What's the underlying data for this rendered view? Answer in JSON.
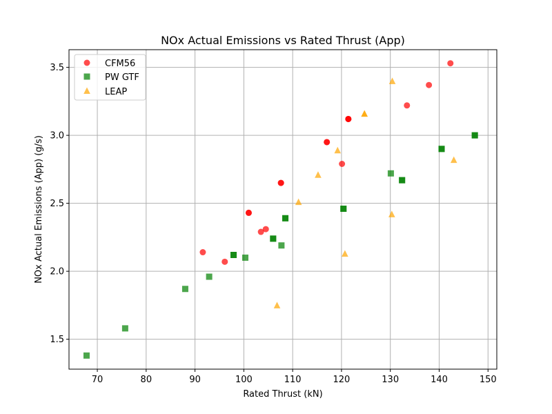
{
  "chart_data": {
    "type": "scatter",
    "title": "NOx Actual Emissions vs Rated Thrust (App)",
    "xlabel": "Rated Thrust (kN)",
    "ylabel": "NOx Actual Emissions (App) (g/s)",
    "xlim": [
      64.2,
      151.8
    ],
    "ylim": [
      1.28,
      3.63
    ],
    "xticks": [
      70,
      80,
      90,
      100,
      110,
      120,
      130,
      140,
      150
    ],
    "yticks": [
      1.5,
      2.0,
      2.5,
      3.0,
      3.5
    ],
    "xtick_labels": [
      "70",
      "80",
      "90",
      "100",
      "110",
      "120",
      "130",
      "140",
      "150"
    ],
    "ytick_labels": [
      "1.5",
      "2.0",
      "2.5",
      "3.0",
      "3.5"
    ],
    "grid": true,
    "legend_position": "upper-left",
    "series": [
      {
        "name": "CFM56",
        "marker": "circle",
        "color": "#ff0000",
        "points": [
          [
            91.6,
            2.14
          ],
          [
            96.1,
            2.07
          ],
          [
            101.0,
            2.43
          ],
          [
            101.0,
            2.43
          ],
          [
            103.5,
            2.29
          ],
          [
            104.5,
            2.31
          ],
          [
            107.6,
            2.65
          ],
          [
            107.6,
            2.65
          ],
          [
            117.0,
            2.95
          ],
          [
            117.0,
            2.95
          ],
          [
            120.1,
            2.79
          ],
          [
            121.4,
            3.12
          ],
          [
            121.4,
            3.12
          ],
          [
            121.4,
            3.12
          ],
          [
            133.4,
            3.22
          ],
          [
            137.9,
            3.37
          ],
          [
            142.3,
            3.53
          ]
        ]
      },
      {
        "name": "PW GTF",
        "marker": "square",
        "color": "#008000",
        "points": [
          [
            67.8,
            1.38
          ],
          [
            75.7,
            1.58
          ],
          [
            88.0,
            1.87
          ],
          [
            92.9,
            1.96
          ],
          [
            97.9,
            2.12
          ],
          [
            97.9,
            2.12
          ],
          [
            100.3,
            2.1
          ],
          [
            106.0,
            2.24
          ],
          [
            106.0,
            2.24
          ],
          [
            107.7,
            2.19
          ],
          [
            108.5,
            2.39
          ],
          [
            108.5,
            2.39
          ],
          [
            120.4,
            2.46
          ],
          [
            120.4,
            2.46
          ],
          [
            130.1,
            2.72
          ],
          [
            132.4,
            2.67
          ],
          [
            132.4,
            2.67
          ],
          [
            140.5,
            2.9
          ],
          [
            140.5,
            2.9
          ],
          [
            147.3,
            3.0
          ],
          [
            147.3,
            3.0
          ]
        ]
      },
      {
        "name": "LEAP",
        "marker": "triangle",
        "color": "#ffa500",
        "points": [
          [
            106.8,
            1.75
          ],
          [
            111.2,
            2.51
          ],
          [
            115.2,
            2.71
          ],
          [
            119.2,
            2.89
          ],
          [
            120.7,
            2.13
          ],
          [
            124.7,
            3.16
          ],
          [
            124.7,
            3.16
          ],
          [
            130.3,
            2.42
          ],
          [
            130.4,
            3.4
          ],
          [
            143.0,
            2.82
          ]
        ]
      }
    ]
  }
}
